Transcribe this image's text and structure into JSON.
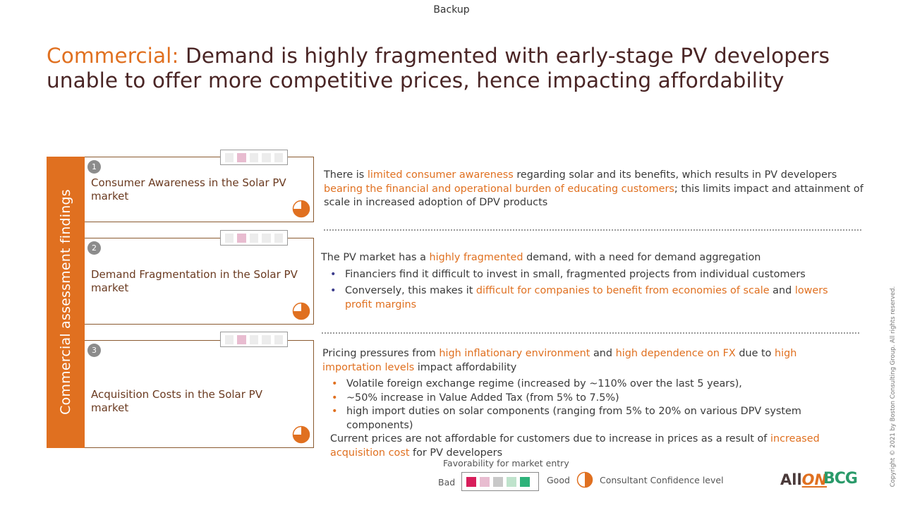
{
  "header": {
    "backup": "Backup"
  },
  "title": {
    "prefix": "Commercial:",
    "line1_rest": "Demand is highly fragmented with early-stage PV developers",
    "line2": "unable to offer more competitive prices, hence impacting affordability"
  },
  "sidebar": {
    "label": "Commercial assessment findings"
  },
  "cards": [
    {
      "number": "1",
      "title": "Consumer Awareness in the Solar PV market",
      "favorability": 2,
      "confidence": 0.75
    },
    {
      "number": "2",
      "title": "Demand Fragmentation in the Solar PV market",
      "favorability": 2,
      "confidence": 0.75
    },
    {
      "number": "3",
      "title": "Acquisition Costs in the Solar PV market",
      "favorability": 2,
      "confidence": 0.75
    }
  ],
  "findings": {
    "f1": {
      "t1": "There is ",
      "h1": "limited consumer awareness",
      "t2": " regarding solar and its benefits, which results in PV developers ",
      "h2": "bearing the financial and operational burden of educating customers",
      "t3": "; this limits impact and attainment of scale in increased adoption of DPV products"
    },
    "f2": {
      "t1": "The PV market has a ",
      "h1": "highly fragmented",
      "t2": " demand, with a need for demand aggregation",
      "b1": "Financiers find it difficult to invest in small, fragmented projects from individual customers",
      "b2_t1": "Conversely, this makes it ",
      "b2_h1": "difficult for companies to benefit from economies of scale",
      "b2_t2": " and ",
      "b2_h2": "lowers profit margins"
    },
    "f3": {
      "t1": "Pricing pressures from ",
      "h1": "high inflationary environment",
      "t2": " and ",
      "h2": "high dependence on FX",
      "t3": " due to ",
      "h3": "high importation levels",
      "t4": " impact affordability",
      "b1": "Volatile foreign exchange regime (increased by ~110% over the last 5 years),",
      "b2": "~50% increase in Value Added Tax (from 5% to 7.5%)",
      "b3": "high import duties on solar components (ranging from 5% to 20% on various DPV system components)",
      "c_t1": "Current prices are not affordable for customers due to increase in prices as a result of ",
      "c_h1": "increased acquisition cost",
      "c_t2": " for PV developers"
    }
  },
  "legend": {
    "caption": "Favorability for market entry",
    "bad": "Bad",
    "good": "Good",
    "confidence": "Consultant Confidence level",
    "scale_colors": [
      "#d81e5b",
      "#e8bcd0",
      "#c8c8c8",
      "#bfe3cc",
      "#2eb27a"
    ]
  },
  "logos": {
    "allon_prefix": "All",
    "allon_suffix": "ON",
    "bcg": "BCG"
  },
  "copyright": "Copyright © 2021 by Boston Consulting Group. All rights reserved.",
  "colors": {
    "accent": "#e07020",
    "title": "#4a2525",
    "sidebar": "#e07020"
  }
}
